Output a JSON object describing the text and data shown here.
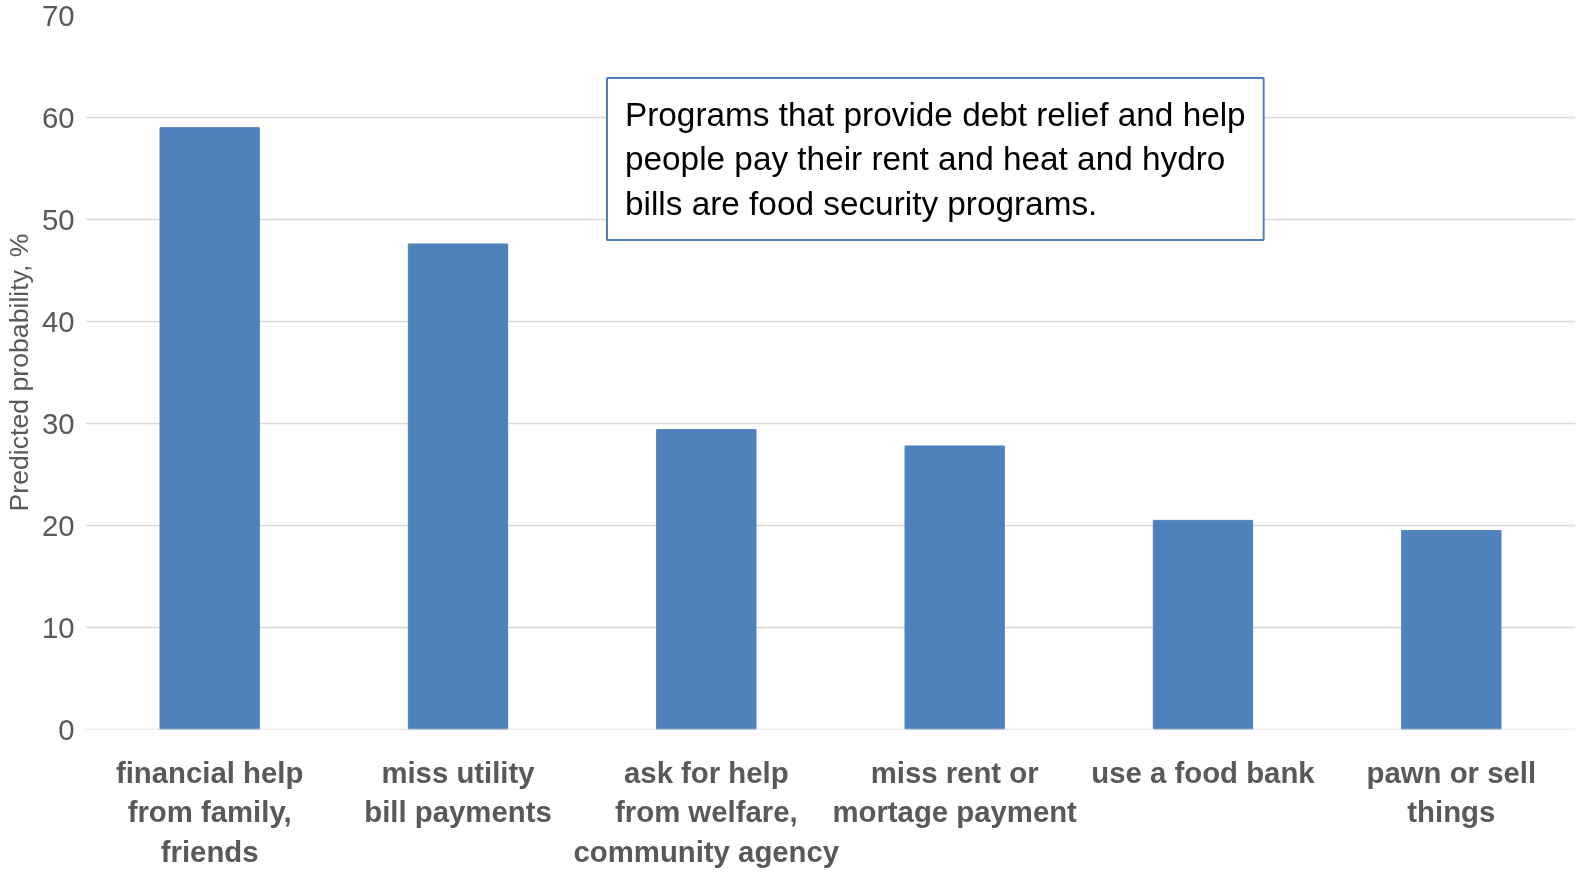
{
  "chart_data": {
    "type": "bar",
    "ylabel": "Predicted probability, %",
    "categories": [
      "financial help from family, friends",
      "miss utility bill payments",
      "ask for help from welfare, community agency",
      "miss rent or mortage payment",
      "use a food bank",
      "pawn or sell things"
    ],
    "values": [
      59,
      47.6,
      29.4,
      27.8,
      20.5,
      19.5
    ],
    "color": "#4f81bd",
    "ylim": [
      0,
      70
    ],
    "yticks": [
      0,
      10,
      20,
      30,
      40,
      50,
      60,
      70
    ],
    "grid": "y",
    "annotations": [
      "Programs that provide debt relief and help people pay their rent and heat and hydro bills are food security programs."
    ]
  }
}
